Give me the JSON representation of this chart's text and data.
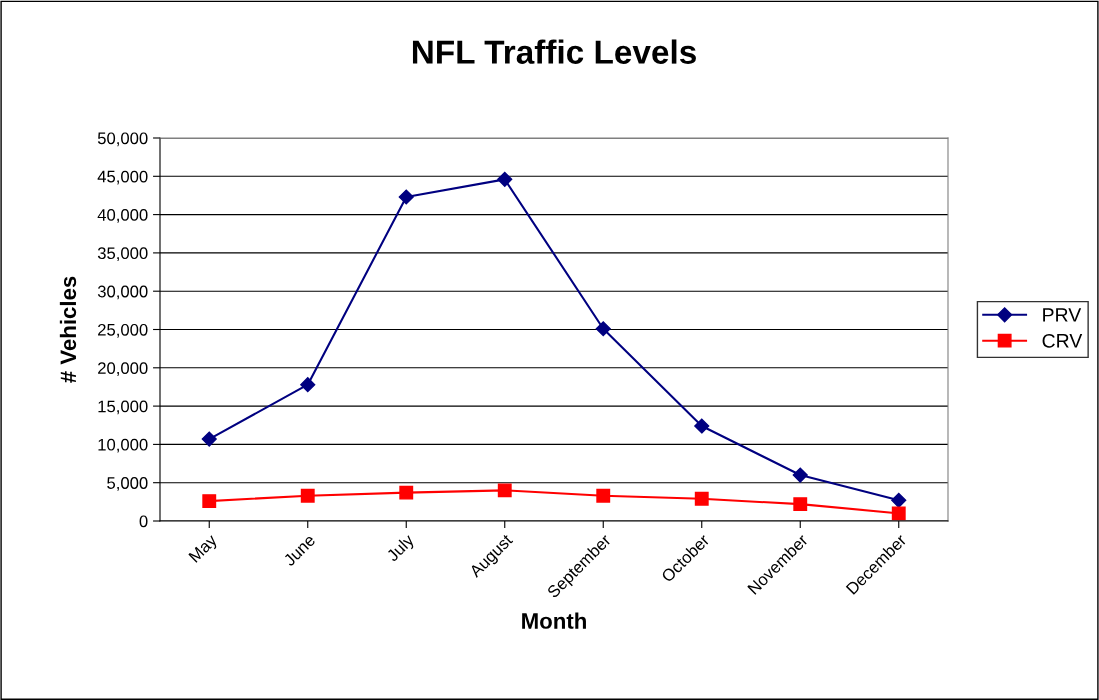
{
  "chart_data": {
    "type": "line",
    "title": "NFL Traffic Levels",
    "xlabel": "Month",
    "ylabel": "# Vehicles",
    "categories": [
      "May",
      "June",
      "July",
      "August",
      "September",
      "October",
      "November",
      "December"
    ],
    "series": [
      {
        "name": "PRV",
        "color": "#000080",
        "marker": "diamond",
        "values": [
          10700,
          17800,
          42300,
          44600,
          25100,
          12400,
          6000,
          2700
        ]
      },
      {
        "name": "CRV",
        "color": "#ff0000",
        "marker": "square",
        "values": [
          2600,
          3300,
          3700,
          4000,
          3300,
          2900,
          2200,
          1000
        ]
      }
    ],
    "ylim": [
      0,
      50000
    ],
    "yticks": [
      {
        "value": 0,
        "label": "0"
      },
      {
        "value": 5000,
        "label": "5,000"
      },
      {
        "value": 10000,
        "label": "10,000"
      },
      {
        "value": 15000,
        "label": "15,000"
      },
      {
        "value": 20000,
        "label": "20,000"
      },
      {
        "value": 25000,
        "label": "25,000"
      },
      {
        "value": 30000,
        "label": "30,000"
      },
      {
        "value": 35000,
        "label": "35,000"
      },
      {
        "value": 40000,
        "label": "40,000"
      },
      {
        "value": 45000,
        "label": "45,000"
      },
      {
        "value": 50000,
        "label": "50,000"
      }
    ],
    "grid": "y",
    "legend": "right",
    "line_style": "solid"
  }
}
